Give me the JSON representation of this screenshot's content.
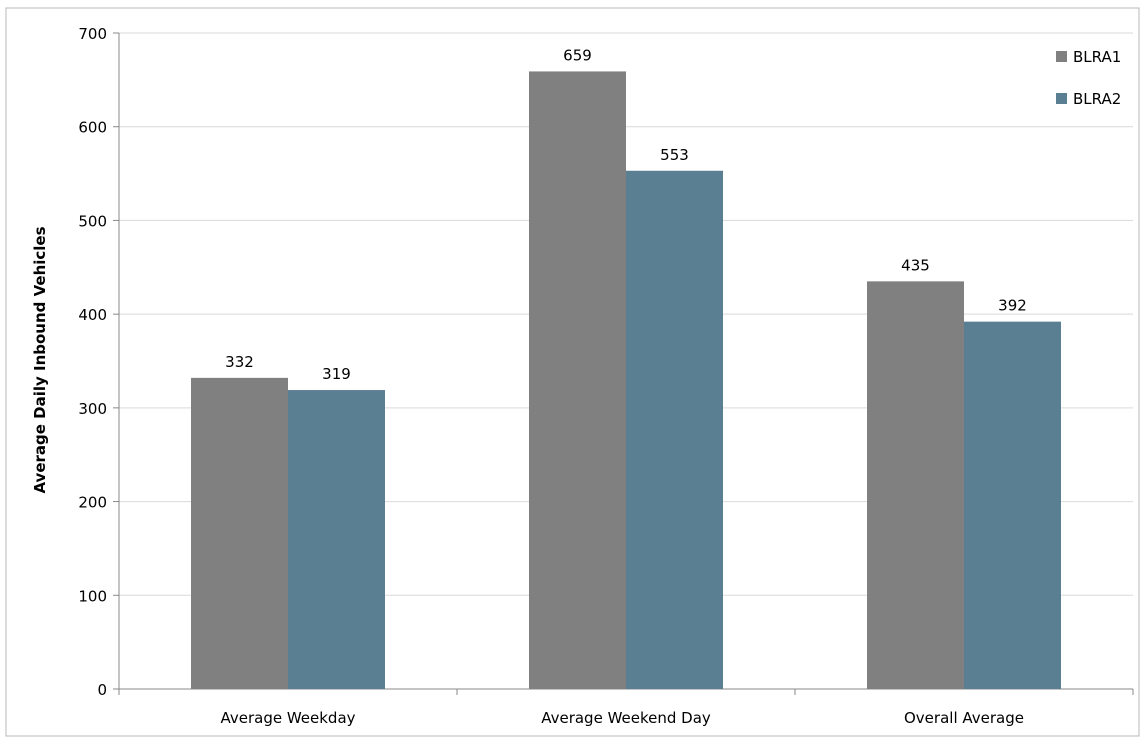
{
  "chart_data": {
    "type": "bar",
    "categories": [
      "Average Weekday",
      "Average Weekend Day",
      "Overall Average"
    ],
    "series": [
      {
        "name": "BLRA1",
        "values": [
          332,
          659,
          435
        ],
        "color": "#808080"
      },
      {
        "name": "BLRA2",
        "values": [
          319,
          553,
          392
        ],
        "color": "#5b7f92"
      }
    ],
    "data_labels": [
      [
        "332",
        "659",
        "435"
      ],
      [
        "319",
        "553",
        "392"
      ]
    ],
    "ylabel": "Average Daily Inbound Vehicles",
    "xlabel": "",
    "ylim": [
      0,
      700
    ],
    "yticks": [
      0,
      100,
      200,
      300,
      400,
      500,
      600,
      700
    ],
    "grid": true,
    "legend_position": "top-right"
  }
}
